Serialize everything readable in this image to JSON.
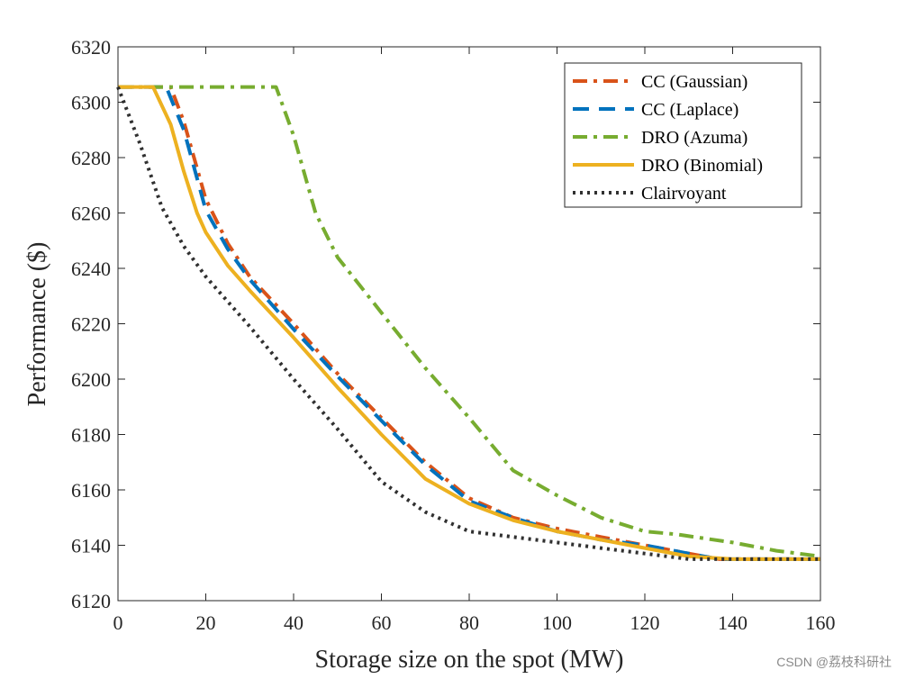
{
  "chart_data": {
    "type": "line",
    "xlabel": "Storage size on the spot (MW)",
    "ylabel": "Performance ($)",
    "xlim": [
      0,
      160
    ],
    "ylim": [
      6120,
      6320
    ],
    "xticks": [
      0,
      20,
      40,
      60,
      80,
      100,
      120,
      140,
      160
    ],
    "yticks": [
      6120,
      6140,
      6160,
      6180,
      6200,
      6220,
      6240,
      6260,
      6280,
      6300,
      6320
    ],
    "grid": false,
    "legend_position": "top-right",
    "series": [
      {
        "name": "CC (Gaussian)",
        "color": "#D95319",
        "style": "dashdot",
        "x": [
          0,
          8,
          12,
          15,
          20,
          25,
          30,
          40,
          50,
          60,
          70,
          80,
          90,
          100,
          110,
          120,
          130,
          137,
          140,
          150,
          160
        ],
        "y": [
          6305.5,
          6305.5,
          6305.5,
          6293,
          6265,
          6249,
          6237,
          6220,
          6202,
          6186,
          6170,
          6157,
          6150,
          6146,
          6143,
          6140,
          6137,
          6135,
          6135,
          6135,
          6135
        ]
      },
      {
        "name": "CC (Laplace)",
        "color": "#0072BD",
        "style": "dashed",
        "x": [
          0,
          8,
          11,
          15,
          20,
          25,
          30,
          40,
          50,
          60,
          70,
          80,
          90,
          100,
          110,
          120,
          130,
          137,
          140,
          150,
          160
        ],
        "y": [
          6305.5,
          6305.5,
          6305.5,
          6290,
          6261,
          6247,
          6236,
          6218,
          6201,
          6185,
          6169,
          6156,
          6150,
          6145,
          6142,
          6140,
          6137,
          6135,
          6135,
          6135,
          6135
        ]
      },
      {
        "name": "DRO (Azuma)",
        "color": "#77AC30",
        "style": "dashdot",
        "x": [
          0,
          20,
          36,
          40,
          45,
          50,
          60,
          70,
          80,
          90,
          100,
          110,
          120,
          127,
          140,
          150,
          160
        ],
        "y": [
          6305.5,
          6305.5,
          6305.5,
          6288,
          6260,
          6244,
          6224,
          6204,
          6186,
          6167,
          6158,
          6150,
          6145,
          6144,
          6141,
          6138,
          6136
        ]
      },
      {
        "name": "DRO (Binomial)",
        "color": "#EDB120",
        "style": "solid",
        "x": [
          0,
          8,
          12,
          15,
          18,
          20,
          25,
          30,
          40,
          50,
          60,
          70,
          80,
          90,
          100,
          110,
          120,
          130,
          140,
          150,
          160
        ],
        "y": [
          6305.5,
          6305.5,
          6292,
          6275,
          6260,
          6253,
          6241,
          6232,
          6215,
          6197,
          6180,
          6164,
          6155,
          6149,
          6145,
          6142,
          6139,
          6136,
          6135,
          6135,
          6135
        ]
      },
      {
        "name": "Clairvoyant",
        "color": "#303030",
        "style": "dotted",
        "x": [
          0,
          5,
          10,
          15,
          20,
          30,
          40,
          50,
          60,
          70,
          80,
          90,
          100,
          110,
          120,
          130,
          140,
          150,
          160
        ],
        "y": [
          6305.5,
          6285,
          6262,
          6248,
          6237,
          6219,
          6200,
          6182,
          6163,
          6152,
          6145,
          6143,
          6141,
          6139,
          6137,
          6135,
          6135,
          6135,
          6135
        ]
      }
    ]
  },
  "watermark": {
    "text": "CSDN @荔枝科研社"
  }
}
